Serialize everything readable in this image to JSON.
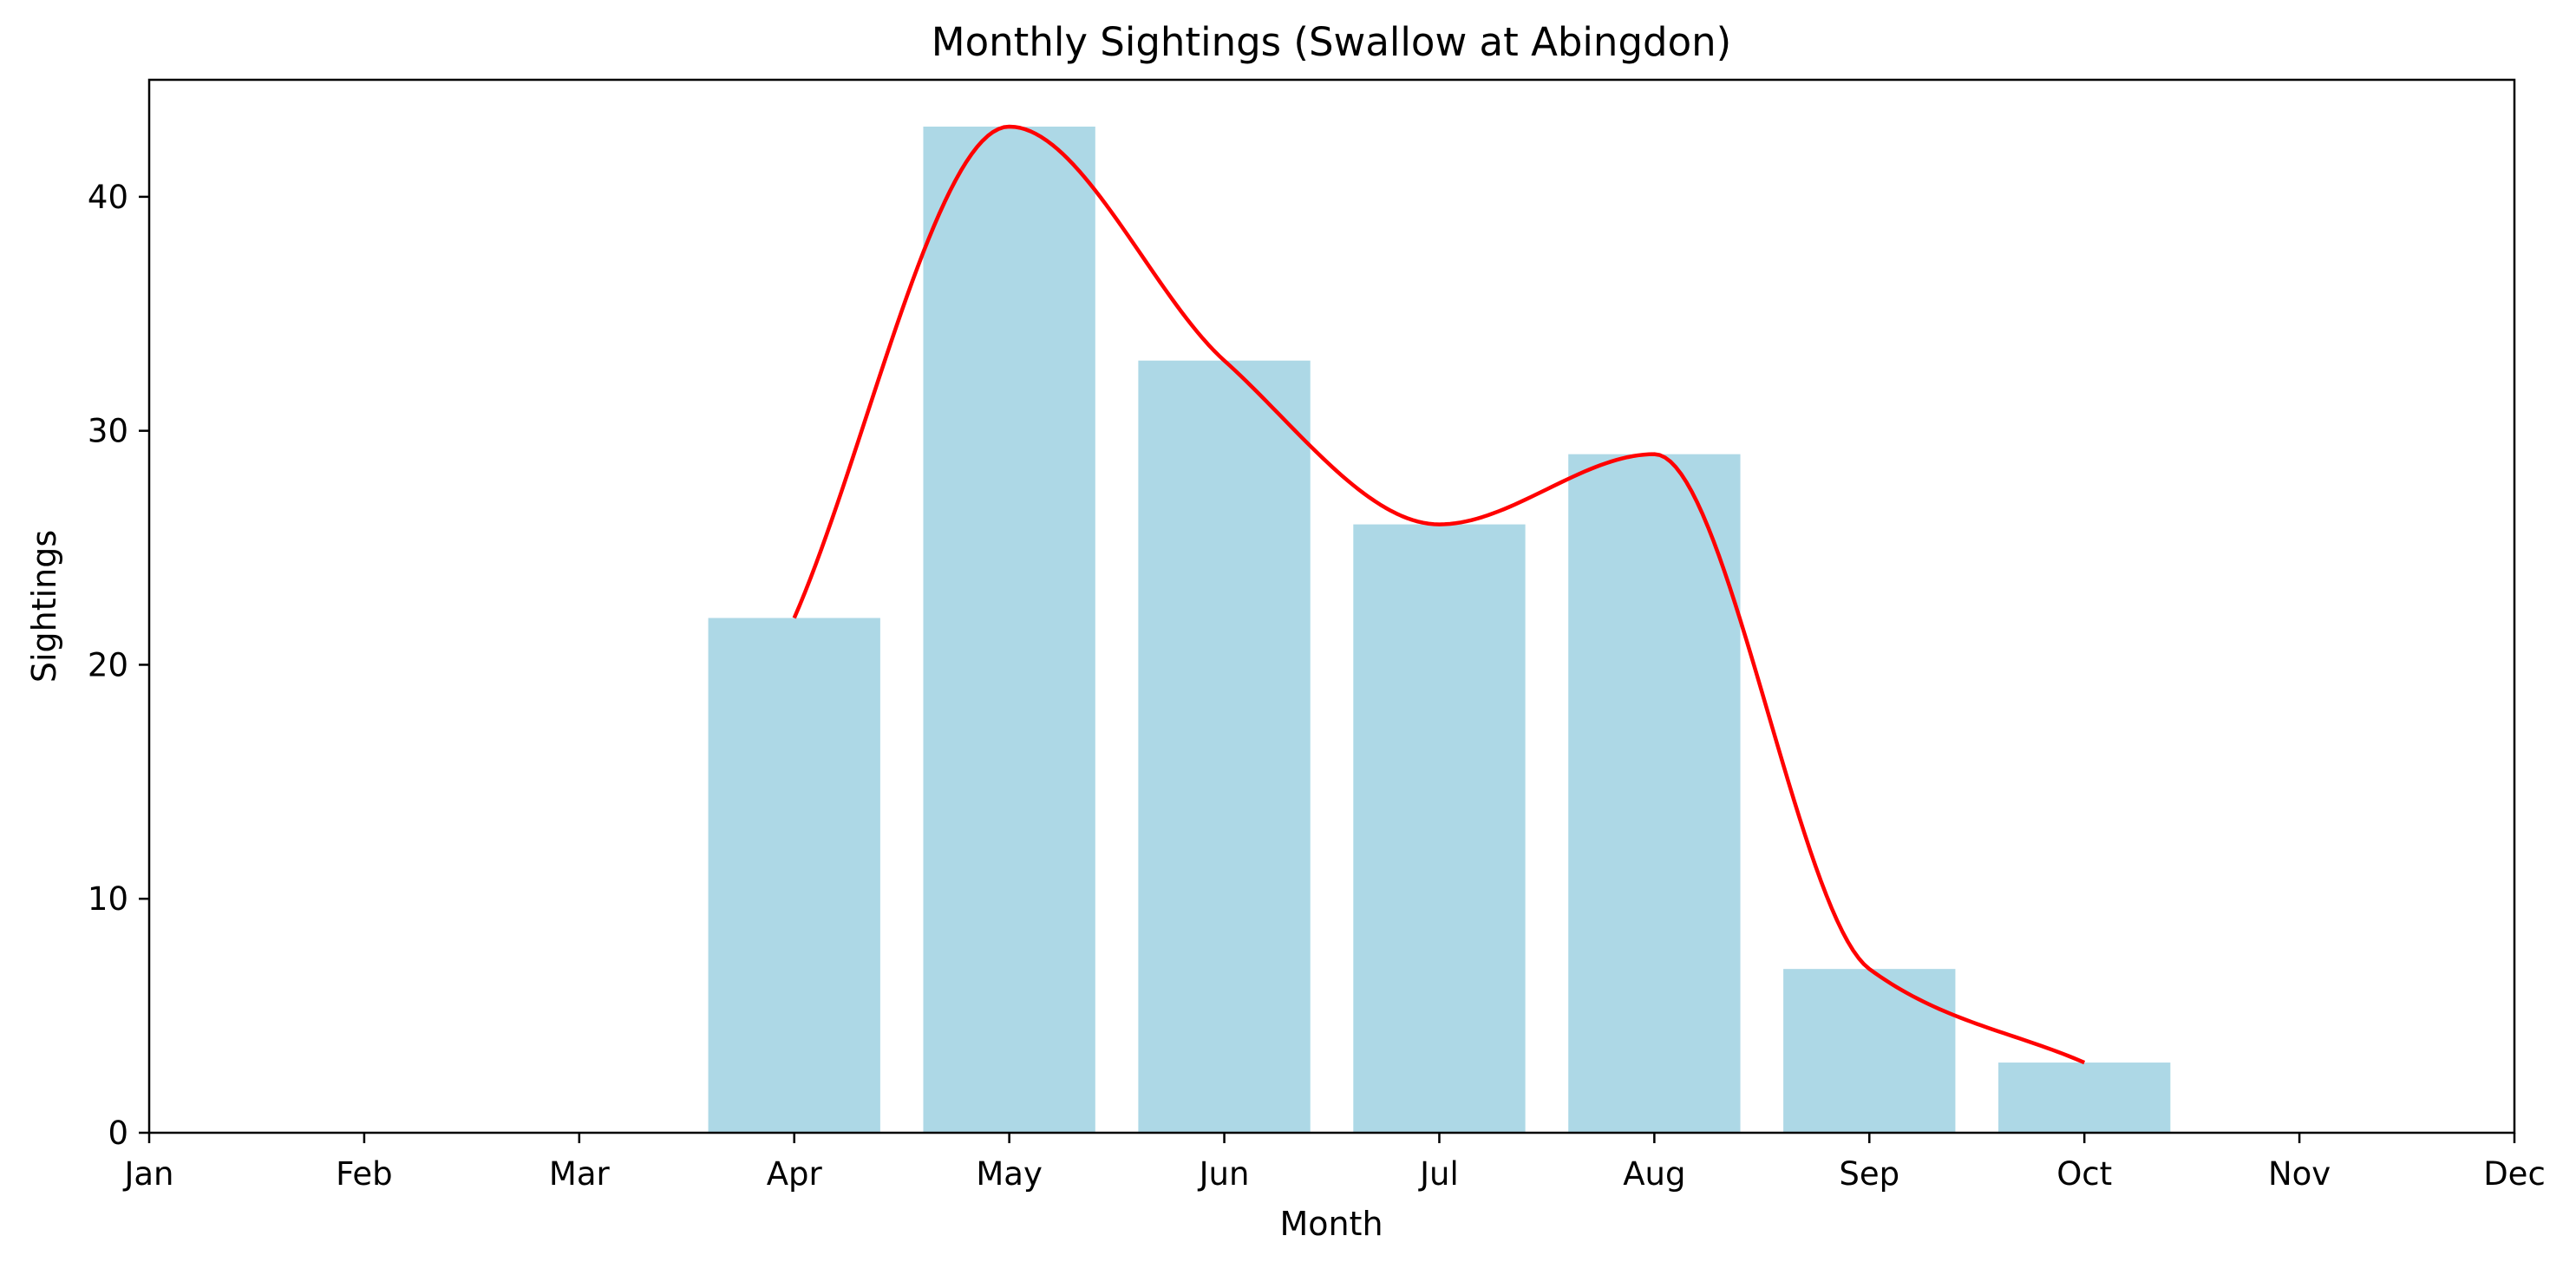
{
  "chart_data": {
    "type": "bar",
    "title": "Monthly Sightings (Swallow at Abingdon)",
    "xlabel": "Month",
    "ylabel": "Sightings",
    "categories": [
      "Jan",
      "Feb",
      "Mar",
      "Apr",
      "May",
      "Jun",
      "Jul",
      "Aug",
      "Sep",
      "Oct",
      "Nov",
      "Dec"
    ],
    "series": [
      {
        "values": [
          null,
          null,
          null,
          22,
          43,
          33,
          26,
          29,
          7,
          3,
          null,
          null
        ],
        "color": "#add8e6",
        "style": "bar"
      },
      {
        "values": [
          null,
          null,
          null,
          22,
          43,
          33,
          26,
          29,
          7,
          3,
          null,
          null
        ],
        "color": "#ff0000",
        "style": "smooth-line"
      }
    ],
    "ylim": [
      0,
      45
    ],
    "yticks": [
      0,
      10,
      20,
      30,
      40
    ],
    "grid": false,
    "legend": "none"
  }
}
